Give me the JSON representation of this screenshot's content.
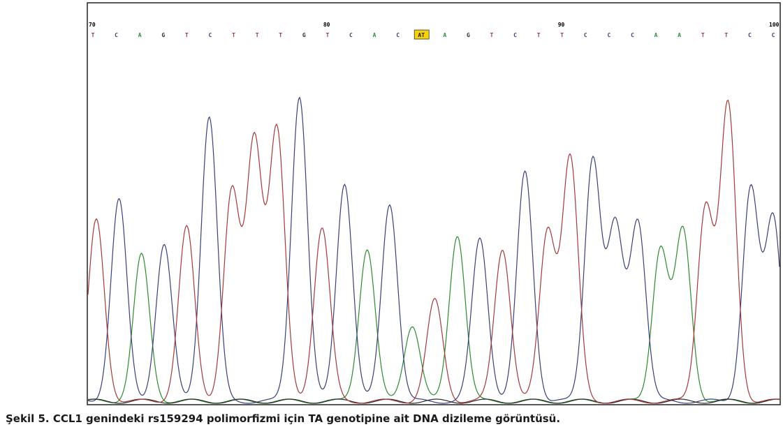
{
  "figure": {
    "caption": "Şekil 5. CCL1 genindeki rs159294 polimorfizmi için TA genotipine ait DNA dizileme görüntüsü."
  },
  "chart_data": {
    "type": "line",
    "title": "",
    "xlabel": "",
    "ylabel": "",
    "grid": false,
    "legend": "none",
    "position_labels": [
      "70",
      "80",
      "90",
      "100"
    ],
    "sequence": [
      "T",
      "C",
      "A",
      "G",
      "T",
      "C",
      "T",
      "T",
      "T",
      "G",
      "T",
      "C",
      "A",
      "C",
      "AT",
      "A",
      "G",
      "T",
      "C",
      "T",
      "T",
      "C",
      "C",
      "C",
      "A",
      "A",
      "T",
      "T",
      "C",
      "C"
    ],
    "highlighted_call": "AT",
    "colors": {
      "A": "#2e8b2e",
      "C": "#3a3f7a",
      "G": "#2b2b2b",
      "T": "#a33a3a",
      "highlight": "#f5d20a"
    },
    "peaks": [
      {
        "base": "T",
        "height": 0.52
      },
      {
        "base": "C",
        "height": 0.58
      },
      {
        "base": "A",
        "height": 0.42
      },
      {
        "base": "C",
        "height": 0.45
      },
      {
        "base": "T",
        "height": 0.5
      },
      {
        "base": "C",
        "height": 0.82
      },
      {
        "base": "T",
        "height": 0.6
      },
      {
        "base": "T",
        "height": 0.75
      },
      {
        "base": "T",
        "height": 0.78
      },
      {
        "base": "C",
        "height": 0.88
      },
      {
        "base": "T",
        "height": 0.5
      },
      {
        "base": "C",
        "height": 0.63
      },
      {
        "base": "A",
        "height": 0.44
      },
      {
        "base": "C",
        "height": 0.57
      },
      {
        "base": "A",
        "height": 0.22
      },
      {
        "base": "T",
        "height": 0.29
      },
      {
        "base": "A",
        "height": 0.48
      },
      {
        "base": "C",
        "height": 0.47
      },
      {
        "base": "T",
        "height": 0.44
      },
      {
        "base": "C",
        "height": 0.66
      },
      {
        "base": "T",
        "height": 0.49
      },
      {
        "base": "T",
        "height": 0.7
      },
      {
        "base": "C",
        "height": 0.7
      },
      {
        "base": "C",
        "height": 0.5
      },
      {
        "base": "C",
        "height": 0.52
      },
      {
        "base": "A",
        "height": 0.44
      },
      {
        "base": "A",
        "height": 0.49
      },
      {
        "base": "T",
        "height": 0.56
      },
      {
        "base": "T",
        "height": 0.85
      },
      {
        "base": "C",
        "height": 0.61
      },
      {
        "base": "C",
        "height": 0.53
      }
    ]
  }
}
